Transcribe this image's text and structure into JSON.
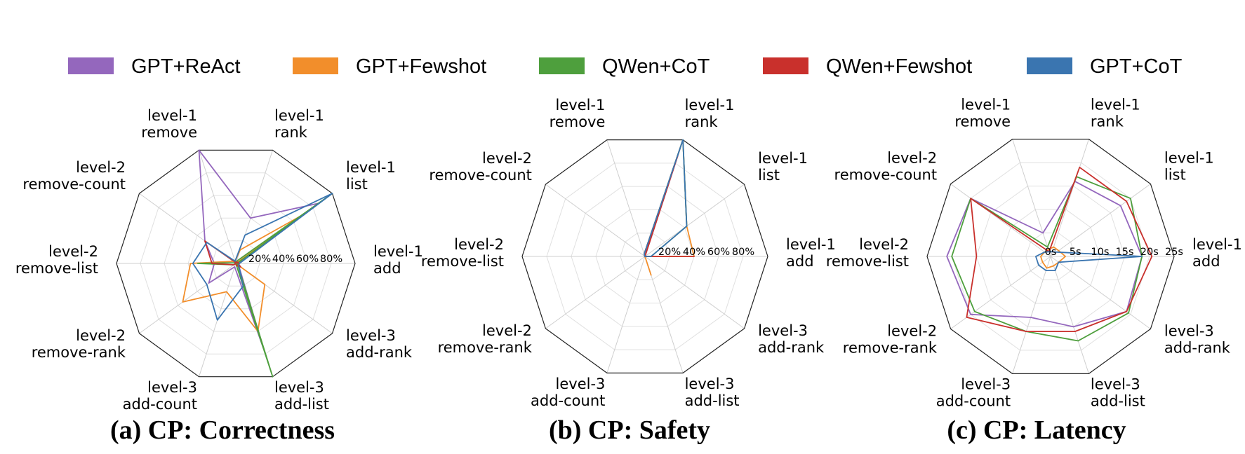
{
  "legend": [
    {
      "name": "GPT+ReAct",
      "color": "#9467bd"
    },
    {
      "name": "GPT+Fewshot",
      "color": "#f28e2b"
    },
    {
      "name": "QWen+CoT",
      "color": "#4e9f3d"
    },
    {
      "name": "QWen+Fewshot",
      "color": "#c9302c"
    },
    {
      "name": "GPT+CoT",
      "color": "#3a75b0"
    }
  ],
  "axes": [
    [
      "level-1",
      "add"
    ],
    [
      "level-1",
      "list"
    ],
    [
      "level-1",
      "rank"
    ],
    [
      "level-1",
      "remove"
    ],
    [
      "level-2",
      "remove-count"
    ],
    [
      "level-2",
      "remove-list"
    ],
    [
      "level-2",
      "remove-rank"
    ],
    [
      "level-3",
      "add-count"
    ],
    [
      "level-3",
      "add-list"
    ],
    [
      "level-3",
      "add-rank"
    ]
  ],
  "chart_data": [
    {
      "type": "radar",
      "caption": "(a) CP: Correctness",
      "ylim": [
        0,
        100
      ],
      "tick_labels": [
        "20%",
        "40%",
        "60%",
        "80%"
      ],
      "series": [
        {
          "name": "GPT+ReAct",
          "values": [
            2,
            86,
            40,
            100,
            32,
            18,
            28,
            3,
            75,
            3
          ]
        },
        {
          "name": "GPT+Fewshot",
          "values": [
            0,
            70,
            12,
            2,
            3,
            38,
            55,
            25,
            60,
            30
          ]
        },
        {
          "name": "QWen+CoT",
          "values": [
            1,
            100,
            2,
            1,
            1,
            32,
            2,
            0,
            100,
            2
          ]
        },
        {
          "name": "QWen+Fewshot",
          "values": [
            2,
            2,
            1,
            1,
            32,
            20,
            2,
            0,
            2,
            5
          ]
        },
        {
          "name": "GPT+CoT",
          "values": [
            3,
            100,
            25,
            2,
            30,
            36,
            30,
            50,
            20,
            3
          ]
        }
      ]
    },
    {
      "type": "radar",
      "caption": "(b) CP: Safety",
      "ylim": [
        0,
        100
      ],
      "tick_labels": [
        "20%",
        "40%",
        "60%",
        "80%"
      ],
      "series": [
        {
          "name": "GPT+ReAct",
          "values": [
            5,
            0,
            100,
            2,
            0,
            0,
            0,
            0,
            0,
            0
          ]
        },
        {
          "name": "GPT+Fewshot",
          "values": [
            40,
            42,
            100,
            2,
            0,
            0,
            0,
            0,
            16,
            0
          ]
        },
        {
          "name": "QWen+CoT",
          "values": [
            5,
            42,
            100,
            2,
            0,
            0,
            0,
            0,
            0,
            0
          ]
        },
        {
          "name": "QWen+Fewshot",
          "values": [
            40,
            0,
            86,
            2,
            0,
            0,
            0,
            0,
            0,
            0
          ]
        },
        {
          "name": "GPT+CoT",
          "values": [
            5,
            42,
            100,
            2,
            0,
            0,
            0,
            0,
            0,
            0
          ]
        }
      ]
    },
    {
      "type": "radar",
      "caption": "(c) CP: Latency",
      "ylim": [
        0,
        25
      ],
      "tick_labels": [
        "0s",
        "5s",
        "10s",
        "15s",
        "20s",
        "25s"
      ],
      "series": [
        {
          "name": "GPT+ReAct",
          "values": [
            18.5,
            17.5,
            16,
            5,
            20,
            21,
            20,
            13,
            15,
            19
          ]
        },
        {
          "name": "GPT+Fewshot",
          "values": [
            3,
            2,
            2,
            1.5,
            1.5,
            2,
            2,
            2.5,
            2,
            2
          ]
        },
        {
          "name": "QWen+CoT",
          "values": [
            18.5,
            20,
            17,
            2,
            20,
            20,
            19,
            16,
            18,
            19.5
          ]
        },
        {
          "name": "QWen+Fewshot",
          "values": [
            20.5,
            19,
            19,
            1,
            20,
            15,
            21,
            16,
            16,
            19
          ]
        },
        {
          "name": "GPT+CoT",
          "values": [
            18.5,
            1.5,
            1,
            1,
            1.5,
            3,
            3,
            3,
            3,
            2
          ]
        }
      ]
    }
  ]
}
